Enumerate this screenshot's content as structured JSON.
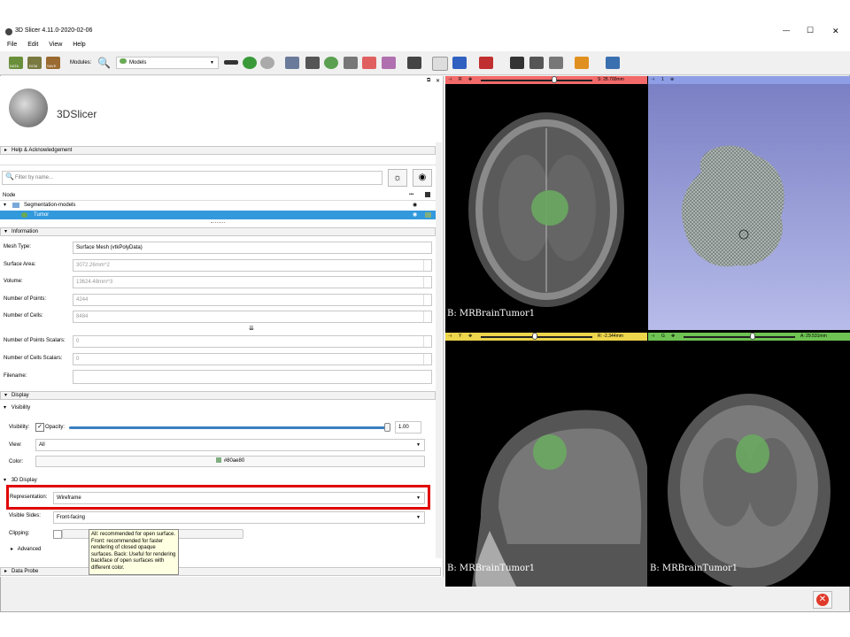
{
  "window": {
    "title": "3D Slicer 4.11.0-2020-02-06",
    "controls": {
      "minimize": "—",
      "maximize": "☐",
      "close": "✕"
    }
  },
  "menu": [
    "File",
    "Edit",
    "View",
    "Help"
  ],
  "toolbar": {
    "data_label": "DATA",
    "dcm_label": "DCM",
    "save_label": "SAVE",
    "modules_label": "Modules:",
    "module_selected": "Models"
  },
  "logo": {
    "text": "3DSlicer"
  },
  "sections": {
    "help": "Help & Acknowledgement",
    "information": "Information",
    "display": "Display",
    "visibility": "Visibility",
    "display3d": "3D Display",
    "advanced": "Advanced",
    "data_probe": "Data Probe"
  },
  "filter": {
    "placeholder": "Filter by name..."
  },
  "tree": {
    "header": "Node",
    "items": [
      {
        "label": "Segmentation-models",
        "selected": false
      },
      {
        "label": "Tumor",
        "selected": true
      }
    ]
  },
  "information": {
    "mesh_type_label": "Mesh Type:",
    "mesh_type_value": "Surface Mesh (vtkPolyData)",
    "surface_area_label": "Surface Area:",
    "surface_area_value": "3072.26mm^2",
    "volume_label": "Volume:",
    "volume_value": "13624.48mm^3",
    "points_label": "Number of Points:",
    "points_value": "4244",
    "cells_label": "Number of Cells:",
    "cells_value": "8484",
    "point_scalars_label": "Number of Points Scalars:",
    "point_scalars_value": "0",
    "cell_scalars_label": "Number of Cells Scalars:",
    "cell_scalars_value": "0",
    "filename_label": "Filename:",
    "filename_value": ""
  },
  "display": {
    "visibility_label": "Visibility:",
    "visibility_checked": true,
    "opacity_label": "Opacity:",
    "opacity_value": "1.00",
    "opacity_fraction": 1.0,
    "view_label": "View:",
    "view_value": "All",
    "color_label": "Color:",
    "color_value": "#80ae80",
    "color_hex": "#80ae80",
    "representation_label": "Representation:",
    "representation_value": "Wireframe",
    "visible_sides_label": "Visible Sides:",
    "visible_sides_value": "Front-facing",
    "clipping_label": "Clipping:"
  },
  "tooltip": "All: recommended for open surface. Front: recommended for faster rendering of closed opaque surfaces. Back: Useful for rendering backface of open surfaces with different color.",
  "views": {
    "red": {
      "letter": "R",
      "offset": "S: 28.700mm",
      "label": "B: MRBrainTumor1",
      "color": "#f26a6a",
      "slider": 0.55
    },
    "yellow": {
      "letter": "Y",
      "offset": "R: -2.344mm",
      "label": "B: MRBrainTumor1",
      "color": "#edd54c",
      "slider": 0.4
    },
    "green": {
      "letter": "G",
      "offset": "A: 29.531mm",
      "label": "B: MRBrainTumor1",
      "color": "#6ec352",
      "slider": 0.55
    },
    "threeD": {
      "letter": "1",
      "color": "#8e9ee6"
    }
  },
  "colors": {
    "selection": "#3399dd",
    "highlight_box": "#e00000"
  }
}
